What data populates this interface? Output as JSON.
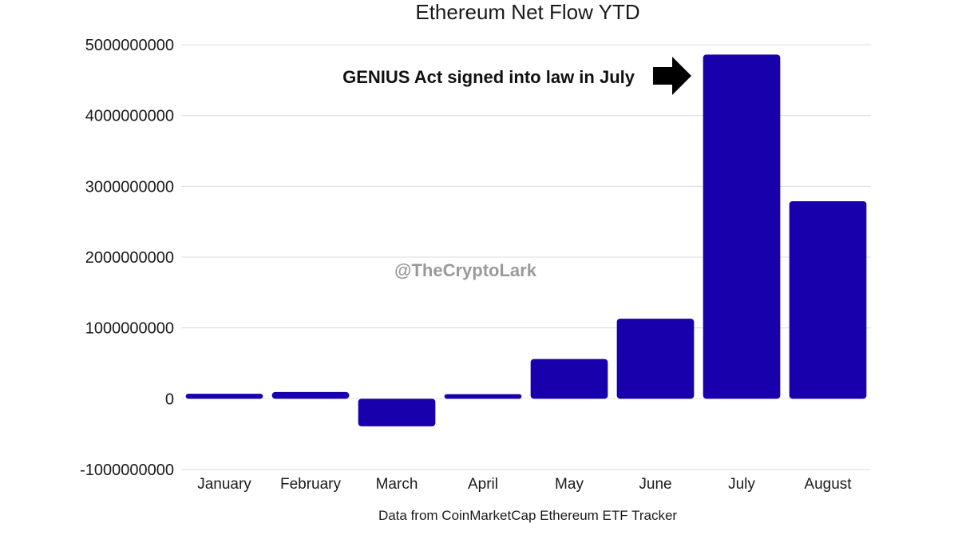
{
  "chart_data": {
    "type": "bar",
    "title": "Ethereum Net Flow YTD",
    "categories": [
      "January",
      "February",
      "March",
      "April",
      "May",
      "June",
      "July",
      "August"
    ],
    "values": [
      70000000,
      95000000,
      -390000000,
      65000000,
      560000000,
      1130000000,
      4860000000,
      2790000000
    ],
    "ylim": [
      -1000000000,
      5000000000
    ],
    "yticks": [
      "-1000000000",
      "0",
      "1000000000",
      "2000000000",
      "3000000000",
      "4000000000",
      "5000000000"
    ],
    "xlabel": "",
    "ylabel": "",
    "bar_color": "#1800ad",
    "grid": true,
    "annotation": "GENIUS Act signed into law in July",
    "annotation_target": "July",
    "watermark": "@TheCryptoLark",
    "source": "Data from CoinMarketCap Ethereum ETF Tracker"
  }
}
